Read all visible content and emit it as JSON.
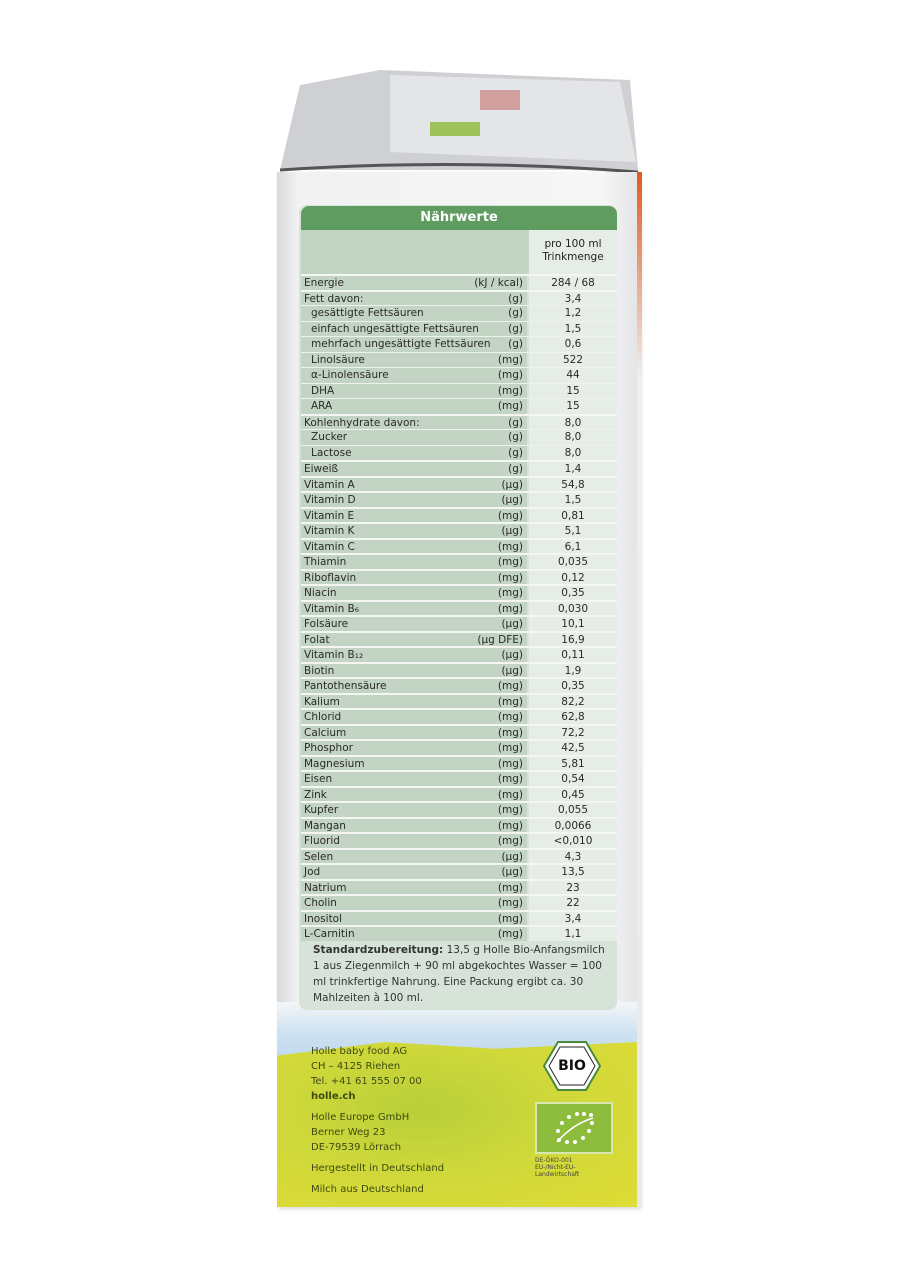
{
  "table": {
    "title": "Nährwerte",
    "column_header": [
      "pro 100 ml",
      "Trinkmenge"
    ],
    "rows": [
      {
        "label": "Energie",
        "unit": "(kJ / kcal)",
        "value": "284 / 68",
        "group": true
      },
      {
        "label": "Fett davon:",
        "unit": "(g)",
        "value": "3,4",
        "group": true
      },
      {
        "label": "gesättigte Fettsäuren",
        "unit": "(g)",
        "value": "1,2",
        "sub": true
      },
      {
        "label": "einfach ungesättigte Fettsäuren",
        "unit": "(g)",
        "value": "1,5",
        "sub": true
      },
      {
        "label": "mehrfach ungesättigte Fettsäuren",
        "unit": "(g)",
        "value": "0,6",
        "sub": true
      },
      {
        "label": "Linolsäure",
        "unit": "(mg)",
        "value": "522",
        "sub": true
      },
      {
        "label": "α-Linolensäure",
        "unit": "(mg)",
        "value": "44",
        "sub": true
      },
      {
        "label": "DHA",
        "unit": "(mg)",
        "value": "15",
        "sub": true
      },
      {
        "label": "ARA",
        "unit": "(mg)",
        "value": "15",
        "sub": true
      },
      {
        "label": "Kohlenhydrate davon:",
        "unit": "(g)",
        "value": "8,0",
        "group": true
      },
      {
        "label": "Zucker",
        "unit": "(g)",
        "value": "8,0",
        "sub": true
      },
      {
        "label": "Lactose",
        "unit": "(g)",
        "value": "8,0",
        "sub": true
      },
      {
        "label": "Eiweiß",
        "unit": "(g)",
        "value": "1,4",
        "group": true
      },
      {
        "label": "Vitamin A",
        "unit": "(µg)",
        "value": "54,8",
        "group": true
      },
      {
        "label": "Vitamin D",
        "unit": "(µg)",
        "value": "1,5",
        "group": true
      },
      {
        "label": "Vitamin E",
        "unit": "(mg)",
        "value": "0,81",
        "group": true
      },
      {
        "label": "Vitamin K",
        "unit": "(µg)",
        "value": "5,1",
        "group": true
      },
      {
        "label": "Vitamin C",
        "unit": "(mg)",
        "value": "6,1",
        "group": true
      },
      {
        "label": "Thiamin",
        "unit": "(mg)",
        "value": "0,035",
        "group": true
      },
      {
        "label": "Riboflavin",
        "unit": "(mg)",
        "value": "0,12",
        "group": true
      },
      {
        "label": "Niacin",
        "unit": "(mg)",
        "value": "0,35",
        "group": true
      },
      {
        "label": "Vitamin B₆",
        "unit": "(mg)",
        "value": "0,030",
        "group": true
      },
      {
        "label": "Folsäure",
        "unit": "(µg)",
        "value": "10,1",
        "group": true
      },
      {
        "label": "Folat",
        "unit": "(µg DFE)",
        "value": "16,9",
        "group": true
      },
      {
        "label": "Vitamin B₁₂",
        "unit": "(µg)",
        "value": "0,11",
        "group": true
      },
      {
        "label": "Biotin",
        "unit": "(µg)",
        "value": "1,9",
        "group": true
      },
      {
        "label": "Pantothensäure",
        "unit": "(mg)",
        "value": "0,35",
        "group": true
      },
      {
        "label": "Kalium",
        "unit": "(mg)",
        "value": "82,2",
        "group": true
      },
      {
        "label": "Chlorid",
        "unit": "(mg)",
        "value": "62,8",
        "group": true
      },
      {
        "label": "Calcium",
        "unit": "(mg)",
        "value": "72,2",
        "group": true
      },
      {
        "label": "Phosphor",
        "unit": "(mg)",
        "value": "42,5",
        "group": true
      },
      {
        "label": "Magnesium",
        "unit": "(mg)",
        "value": "5,81",
        "group": true
      },
      {
        "label": "Eisen",
        "unit": "(mg)",
        "value": "0,54",
        "group": true
      },
      {
        "label": "Zink",
        "unit": "(mg)",
        "value": "0,45",
        "group": true
      },
      {
        "label": "Kupfer",
        "unit": "(mg)",
        "value": "0,055",
        "group": true
      },
      {
        "label": "Mangan",
        "unit": "(mg)",
        "value": "0,0066",
        "group": true
      },
      {
        "label": "Fluorid",
        "unit": "(mg)",
        "value": "<0,010",
        "group": true
      },
      {
        "label": "Selen",
        "unit": "(µg)",
        "value": "4,3",
        "group": true
      },
      {
        "label": "Jod",
        "unit": "(µg)",
        "value": "13,5",
        "group": true
      },
      {
        "label": "Natrium",
        "unit": "(mg)",
        "value": "23",
        "group": true
      },
      {
        "label": "Cholin",
        "unit": "(mg)",
        "value": "22",
        "group": true
      },
      {
        "label": "Inositol",
        "unit": "(mg)",
        "value": "3,4",
        "group": true
      },
      {
        "label": "L-Carnitin",
        "unit": "(mg)",
        "value": "1,1",
        "group": true
      }
    ]
  },
  "preparation": {
    "heading": "Standardzubereitung:",
    "text": " 13,5 g Holle Bio-Anfangsmilch 1 aus Ziegenmilch + 90 ml abgekochtes Wasser = 100 ml trinkfertige Nahrung. Eine Packung ergibt ca. 30 Mahlzeiten à 100 ml."
  },
  "address": {
    "ch": [
      "Holle baby food AG",
      "CH – 4125 Riehen",
      "Tel. +41 61 555 07 00",
      "holle.ch"
    ],
    "de": [
      "Holle Europe GmbH",
      "Berner Weg 23",
      "DE-79539 Lörrach"
    ],
    "made_in": "Hergestellt in Deutschland",
    "milk_origin": "Milch aus Deutschland"
  },
  "logos": {
    "bio_seal": "BIO",
    "eu_code": [
      "DE-ÖKO-001",
      "EU-/Nicht-EU-",
      "Landwirtschaft"
    ]
  },
  "colors": {
    "header_green": "#5e9d5f",
    "label_bg": "#c3d3c4",
    "value_bg": "#e6ece6",
    "meadow": "#cfd83a"
  }
}
